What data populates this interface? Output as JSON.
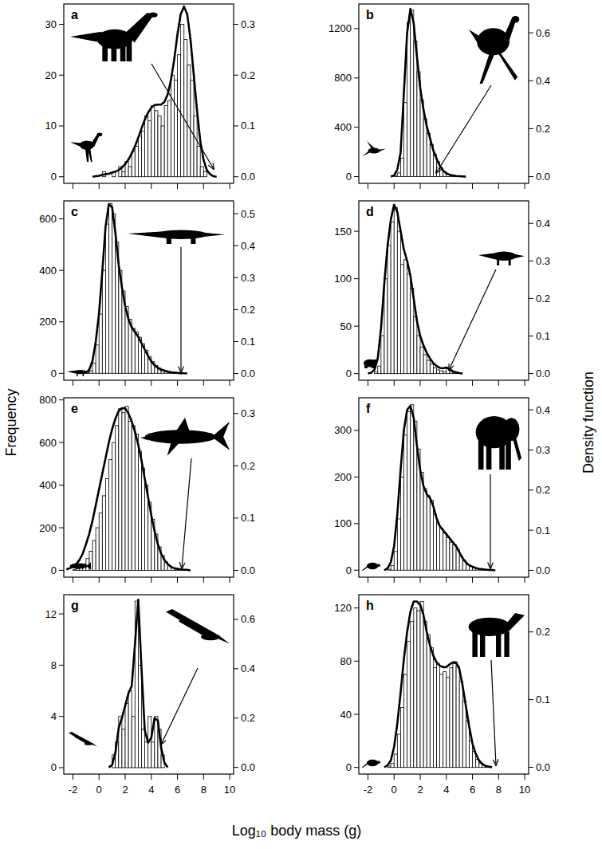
{
  "axis_titles": {
    "xlabel": "Log₁₀ body mass (g)",
    "ylabel": "Frequency",
    "y2label": "Density function"
  },
  "chart_data": [
    {
      "type": "histogram",
      "title": "a",
      "tick_labels": "y",
      "bins": [
        -0.5,
        -0.25,
        0,
        0.25,
        0.5,
        0.75,
        1,
        1.25,
        1.5,
        1.75,
        2,
        2.25,
        2.5,
        2.75,
        3,
        3.25,
        3.5,
        3.75,
        4,
        4.25,
        4.5,
        4.75,
        5,
        5.25,
        5.5,
        5.75,
        6,
        6.25,
        6.5,
        6.75,
        7,
        7.25,
        7.5,
        7.75,
        8,
        8.25,
        8.5
      ],
      "counts": [
        0,
        0,
        0,
        1,
        0,
        0,
        1,
        0,
        2,
        1,
        3,
        2,
        5,
        6,
        8,
        9,
        12,
        11,
        14,
        13,
        12,
        10,
        14,
        15,
        20,
        19,
        24,
        30,
        27,
        22,
        19,
        12,
        6,
        2,
        1,
        0
      ],
      "density": {
        "type": "line",
        "axis": "y2",
        "x": [
          -0.5,
          -0.25,
          0,
          0.25,
          0.5,
          0.75,
          1,
          1.25,
          1.5,
          1.75,
          2,
          2.25,
          2.5,
          2.75,
          3,
          3.25,
          3.5,
          3.75,
          4,
          4.25,
          4.5,
          4.75,
          5,
          5.25,
          5.5,
          5.75,
          6,
          6.25,
          6.5,
          6.75,
          7,
          7.25,
          7.5,
          7.75,
          8,
          8.25,
          8.5,
          8.75,
          9
        ],
        "values": [
          0,
          0.001,
          0.002,
          0.004,
          0.005,
          0.006,
          0.008,
          0.01,
          0.013,
          0.018,
          0.025,
          0.034,
          0.046,
          0.06,
          0.077,
          0.095,
          0.112,
          0.126,
          0.136,
          0.141,
          0.142,
          0.142,
          0.147,
          0.162,
          0.19,
          0.23,
          0.28,
          0.32,
          0.335,
          0.32,
          0.27,
          0.2,
          0.13,
          0.07,
          0.033,
          0.013,
          0.005,
          0.001,
          0
        ]
      },
      "xlim": [
        -2.7,
        10.3
      ],
      "xticks": [
        -2,
        0,
        2,
        4,
        6,
        8,
        10
      ],
      "ylim": [
        -1.3,
        34
      ],
      "yticks": [
        0,
        10,
        20,
        30
      ],
      "y2lim": [
        -0.013,
        0.34
      ],
      "y2ticks": [
        {
          "value": 0,
          "label": "0.0"
        },
        0.1,
        0.2,
        0.3
      ]
    },
    {
      "type": "histogram",
      "title": "b",
      "tick_labels": "y",
      "bins": [
        0,
        0.25,
        0.5,
        0.75,
        1,
        1.25,
        1.5,
        1.75,
        2,
        2.25,
        2.5,
        2.75,
        3,
        3.25,
        3.5,
        3.75,
        4,
        4.25,
        4.5,
        4.75,
        5,
        5.25
      ],
      "counts": [
        5,
        30,
        150,
        600,
        1250,
        1350,
        1100,
        850,
        620,
        470,
        350,
        260,
        180,
        120,
        70,
        40,
        20,
        10,
        5,
        3,
        2
      ],
      "density": {
        "type": "line",
        "axis": "y2",
        "x": [
          -0.25,
          0,
          0.25,
          0.5,
          0.75,
          1,
          1.25,
          1.5,
          1.75,
          2,
          2.25,
          2.5,
          2.75,
          3,
          3.25,
          3.5,
          3.75,
          4,
          4.25,
          4.5,
          4.75,
          5,
          5.25,
          5.5
        ],
        "values": [
          0,
          0.005,
          0.03,
          0.1,
          0.35,
          0.6,
          0.7,
          0.64,
          0.5,
          0.37,
          0.28,
          0.21,
          0.16,
          0.11,
          0.075,
          0.045,
          0.025,
          0.014,
          0.008,
          0.005,
          0.003,
          0.002,
          0.001,
          0
        ]
      },
      "xlim": [
        -2.7,
        10.3
      ],
      "xticks": [
        -2,
        0,
        2,
        4,
        6,
        8,
        10
      ],
      "ylim": [
        -55,
        1400
      ],
      "yticks": [
        0,
        400,
        800,
        1200
      ],
      "y2lim": [
        -0.028,
        0.72
      ],
      "y2ticks": [
        {
          "value": 0,
          "label": "0.0"
        },
        0.2,
        0.4,
        0.6
      ]
    },
    {
      "type": "histogram",
      "title": "c",
      "tick_labels": "y",
      "bins": [
        -1,
        -0.75,
        -0.5,
        -0.25,
        0,
        0.25,
        0.5,
        0.75,
        1,
        1.25,
        1.5,
        1.75,
        2,
        2.25,
        2.5,
        2.75,
        3,
        3.25,
        3.5,
        3.75,
        4,
        4.25,
        4.5,
        4.75,
        5,
        5.25,
        5.5,
        5.75,
        6,
        6.25,
        6.5
      ],
      "counts": [
        2,
        10,
        40,
        110,
        230,
        400,
        580,
        660,
        620,
        510,
        400,
        320,
        260,
        210,
        175,
        160,
        140,
        115,
        90,
        65,
        45,
        30,
        20,
        14,
        10,
        7,
        5,
        3,
        2,
        1
      ],
      "density": {
        "type": "line",
        "axis": "y2",
        "x": [
          -1.25,
          -1,
          -0.75,
          -0.5,
          -0.25,
          0,
          0.25,
          0.5,
          0.75,
          1,
          1.25,
          1.5,
          1.75,
          2,
          2.25,
          2.5,
          2.75,
          3,
          3.25,
          3.5,
          3.75,
          4,
          4.25,
          4.5,
          4.75,
          5,
          5.25,
          5.5,
          5.75,
          6,
          6.25,
          6.5,
          6.75
        ],
        "values": [
          0,
          0.003,
          0.012,
          0.04,
          0.1,
          0.19,
          0.32,
          0.46,
          0.53,
          0.52,
          0.44,
          0.34,
          0.27,
          0.21,
          0.17,
          0.145,
          0.13,
          0.115,
          0.095,
          0.075,
          0.055,
          0.038,
          0.026,
          0.018,
          0.012,
          0.009,
          0.006,
          0.004,
          0.003,
          0.002,
          0.001,
          0.001,
          0
        ]
      },
      "xlim": [
        -2.7,
        10.3
      ],
      "xticks": [
        -2,
        0,
        2,
        4,
        6,
        8,
        10
      ],
      "ylim": [
        -27,
        670
      ],
      "yticks": [
        0,
        200,
        400,
        600
      ],
      "y2lim": [
        -0.021,
        0.54
      ],
      "y2ticks": [
        {
          "value": 0,
          "label": "0.0"
        },
        0.1,
        0.2,
        0.3,
        0.4,
        0.5
      ]
    },
    {
      "type": "histogram",
      "title": "d",
      "tick_labels": "y",
      "bins": [
        -1.5,
        -1.25,
        -1,
        -0.75,
        -0.5,
        -0.25,
        0,
        0.25,
        0.5,
        0.75,
        1,
        1.25,
        1.5,
        1.75,
        2,
        2.25,
        2.5,
        2.75,
        3,
        3.25,
        3.5,
        3.75,
        4,
        4.25,
        4.5,
        4.75,
        5
      ],
      "counts": [
        2,
        8,
        40,
        100,
        135,
        160,
        175,
        150,
        115,
        120,
        105,
        90,
        60,
        40,
        28,
        20,
        14,
        10,
        6,
        4,
        3,
        2,
        5,
        2,
        1,
        1
      ],
      "density": {
        "type": "line",
        "axis": "y2",
        "x": [
          -2,
          -1.75,
          -1.5,
          -1.25,
          -1,
          -0.75,
          -0.5,
          -0.25,
          0,
          0.25,
          0.5,
          0.75,
          1,
          1.25,
          1.5,
          1.75,
          2,
          2.25,
          2.5,
          2.75,
          3,
          3.25,
          3.5,
          3.75,
          4,
          4.25,
          4.5,
          4.75,
          5,
          5.25
        ],
        "values": [
          0,
          0.002,
          0.01,
          0.04,
          0.12,
          0.24,
          0.34,
          0.41,
          0.45,
          0.43,
          0.38,
          0.33,
          0.3,
          0.26,
          0.2,
          0.14,
          0.1,
          0.075,
          0.055,
          0.04,
          0.028,
          0.02,
          0.015,
          0.014,
          0.016,
          0.012,
          0.006,
          0.003,
          0.001,
          0
        ]
      },
      "xlim": [
        -2.7,
        10.3
      ],
      "xticks": [
        -2,
        0,
        2,
        4,
        6,
        8,
        10
      ],
      "ylim": [
        -7,
        182
      ],
      "yticks": [
        0,
        50,
        100,
        150
      ],
      "y2lim": [
        -0.018,
        0.46
      ],
      "y2ticks": [
        {
          "value": 0,
          "label": "0.0"
        },
        0.1,
        0.2,
        0.3,
        0.4
      ]
    },
    {
      "type": "histogram",
      "title": "e",
      "tick_labels": "y",
      "bins": [
        -2,
        -1.75,
        -1.5,
        -1.25,
        -1,
        -0.75,
        -0.5,
        -0.25,
        0,
        0.25,
        0.5,
        0.75,
        1,
        1.25,
        1.5,
        1.75,
        2,
        2.25,
        2.5,
        2.75,
        3,
        3.25,
        3.5,
        3.75,
        4,
        4.25,
        4.5,
        4.75,
        5,
        5.25,
        5.5,
        5.75,
        6,
        6.25,
        6.5
      ],
      "counts": [
        3,
        8,
        15,
        30,
        55,
        90,
        140,
        200,
        270,
        350,
        430,
        520,
        600,
        680,
        760,
        740,
        770,
        700,
        680,
        640,
        560,
        480,
        400,
        320,
        240,
        170,
        110,
        70,
        40,
        22,
        12,
        6,
        3,
        2
      ],
      "density": {
        "type": "line",
        "axis": "y2",
        "x": [
          -2.5,
          -2.25,
          -2,
          -1.75,
          -1.5,
          -1.25,
          -1,
          -0.75,
          -0.5,
          -0.25,
          0,
          0.25,
          0.5,
          0.75,
          1,
          1.25,
          1.5,
          1.75,
          2,
          2.25,
          2.5,
          2.75,
          3,
          3.25,
          3.5,
          3.75,
          4,
          4.25,
          4.5,
          4.75,
          5,
          5.25,
          5.5,
          5.75,
          6,
          6.25,
          6.5,
          6.75,
          7
        ],
        "values": [
          0.002,
          0.004,
          0.007,
          0.012,
          0.02,
          0.032,
          0.05,
          0.07,
          0.095,
          0.125,
          0.155,
          0.185,
          0.215,
          0.245,
          0.27,
          0.29,
          0.305,
          0.31,
          0.31,
          0.3,
          0.285,
          0.265,
          0.24,
          0.21,
          0.175,
          0.14,
          0.105,
          0.075,
          0.05,
          0.032,
          0.02,
          0.012,
          0.007,
          0.004,
          0.003,
          0.002,
          0.001,
          0.001,
          0
        ]
      },
      "xlim": [
        -2.7,
        10.3
      ],
      "xticks": [
        -2,
        0,
        2,
        4,
        6,
        8,
        10
      ],
      "ylim": [
        -32,
        810
      ],
      "yticks": [
        0,
        200,
        400,
        600,
        800
      ],
      "y2lim": [
        -0.013,
        0.33
      ],
      "y2ticks": [
        {
          "value": 0,
          "label": "0.0"
        },
        0.1,
        0.2,
        0.3
      ]
    },
    {
      "type": "histogram",
      "title": "f",
      "tick_labels": "y",
      "bins": [
        -0.5,
        -0.25,
        0,
        0.25,
        0.5,
        0.75,
        1,
        1.25,
        1.5,
        1.75,
        2,
        2.25,
        2.5,
        2.75,
        3,
        3.25,
        3.5,
        3.75,
        4,
        4.25,
        4.5,
        4.75,
        5,
        5.25,
        5.5,
        5.75,
        6,
        6.25,
        6.5,
        6.75,
        7
      ],
      "counts": [
        2,
        10,
        40,
        110,
        200,
        290,
        340,
        355,
        320,
        260,
        210,
        175,
        160,
        150,
        120,
        100,
        90,
        80,
        70,
        60,
        55,
        45,
        30,
        20,
        12,
        8,
        5,
        3,
        2,
        1
      ],
      "density": {
        "type": "line",
        "axis": "y2",
        "x": [
          -0.75,
          -0.5,
          -0.25,
          0,
          0.25,
          0.5,
          0.75,
          1,
          1.25,
          1.5,
          1.75,
          2,
          2.25,
          2.5,
          2.75,
          3,
          3.25,
          3.5,
          3.75,
          4,
          4.25,
          4.5,
          4.75,
          5,
          5.25,
          5.5,
          5.75,
          6,
          6.25,
          6.5,
          6.75,
          7,
          7.25,
          7.5,
          7.75
        ],
        "values": [
          0,
          0.005,
          0.02,
          0.06,
          0.14,
          0.25,
          0.35,
          0.4,
          0.41,
          0.38,
          0.31,
          0.25,
          0.21,
          0.19,
          0.18,
          0.16,
          0.13,
          0.11,
          0.1,
          0.09,
          0.08,
          0.07,
          0.06,
          0.045,
          0.03,
          0.02,
          0.013,
          0.009,
          0.006,
          0.004,
          0.003,
          0.002,
          0.001,
          0.001,
          0
        ]
      },
      "xlim": [
        -2.7,
        10.3
      ],
      "xticks": [
        -2,
        0,
        2,
        4,
        6,
        8,
        10
      ],
      "ylim": [
        -15,
        370
      ],
      "yticks": [
        0,
        100,
        200,
        300
      ],
      "y2lim": [
        -0.017,
        0.43
      ],
      "y2ticks": [
        {
          "value": 0,
          "label": "0.0"
        },
        0.1,
        0.2,
        0.3,
        0.4
      ]
    },
    {
      "type": "histogram",
      "title": "g",
      "bins": [
        1,
        1.25,
        1.5,
        1.75,
        2,
        2.25,
        2.5,
        2.75,
        3,
        3.25,
        3.5,
        3.75,
        4,
        4.25,
        4.5,
        4.75,
        5
      ],
      "counts": [
        1,
        2,
        4,
        3,
        5,
        6,
        4,
        13,
        8,
        3,
        2,
        4,
        2,
        4,
        3,
        1
      ],
      "density": {
        "type": "line",
        "axis": "y2",
        "x": [
          0.75,
          1,
          1.25,
          1.5,
          1.75,
          2,
          2.25,
          2.5,
          2.75,
          3,
          3.25,
          3.5,
          3.75,
          4,
          4.25,
          4.5,
          4.75,
          5,
          5.25
        ],
        "values": [
          0,
          0.01,
          0.06,
          0.16,
          0.2,
          0.25,
          0.3,
          0.33,
          0.5,
          0.68,
          0.4,
          0.15,
          0.1,
          0.12,
          0.2,
          0.19,
          0.08,
          0.02,
          0
        ]
      },
      "xlim": [
        -2.7,
        10.3
      ],
      "xticks": [
        -2,
        0,
        2,
        4,
        6,
        8,
        10
      ],
      "ylim": [
        -0.5,
        13.5
      ],
      "yticks": [
        0,
        4,
        8,
        12
      ],
      "y2lim": [
        -0.027,
        0.7
      ],
      "y2ticks": [
        {
          "value": 0,
          "label": "0.0"
        },
        0.2,
        0.4,
        0.6
      ]
    },
    {
      "type": "histogram",
      "title": "h",
      "bins": [
        -0.5,
        -0.25,
        0,
        0.25,
        0.5,
        0.75,
        1,
        1.25,
        1.5,
        1.75,
        2,
        2.25,
        2.5,
        2.75,
        3,
        3.25,
        3.5,
        3.75,
        4,
        4.25,
        4.5,
        4.75,
        5,
        5.25,
        5.5,
        5.75,
        6,
        6.25,
        6.5,
        6.75,
        7,
        7.25
      ],
      "counts": [
        1,
        3,
        10,
        25,
        45,
        70,
        95,
        110,
        120,
        118,
        125,
        110,
        100,
        90,
        75,
        78,
        70,
        72,
        68,
        75,
        78,
        76,
        65,
        50,
        35,
        20,
        12,
        6,
        3,
        2,
        1
      ],
      "density": {
        "type": "line",
        "axis": "y2",
        "x": [
          -0.75,
          -0.5,
          -0.25,
          0,
          0.25,
          0.5,
          0.75,
          1,
          1.25,
          1.5,
          1.75,
          2,
          2.25,
          2.5,
          2.75,
          3,
          3.25,
          3.5,
          3.75,
          4,
          4.25,
          4.5,
          4.75,
          5,
          5.25,
          5.5,
          5.75,
          6,
          6.25,
          6.5,
          6.75,
          7,
          7.25,
          7.5
        ],
        "values": [
          0,
          0.003,
          0.01,
          0.03,
          0.065,
          0.11,
          0.16,
          0.2,
          0.23,
          0.245,
          0.245,
          0.24,
          0.225,
          0.2,
          0.18,
          0.165,
          0.155,
          0.15,
          0.148,
          0.148,
          0.152,
          0.155,
          0.155,
          0.145,
          0.12,
          0.09,
          0.06,
          0.035,
          0.02,
          0.01,
          0.005,
          0.002,
          0.001,
          0
        ]
      },
      "xlim": [
        -2.7,
        10.3
      ],
      "xticks": [
        -2,
        0,
        2,
        4,
        6,
        8,
        10
      ],
      "ylim": [
        -5,
        130
      ],
      "yticks": [
        0,
        40,
        80,
        120
      ],
      "y2lim": [
        -0.01,
        0.255
      ],
      "y2ticks": [
        {
          "value": 0,
          "label": "0.0"
        },
        0.1,
        0.2
      ]
    }
  ]
}
